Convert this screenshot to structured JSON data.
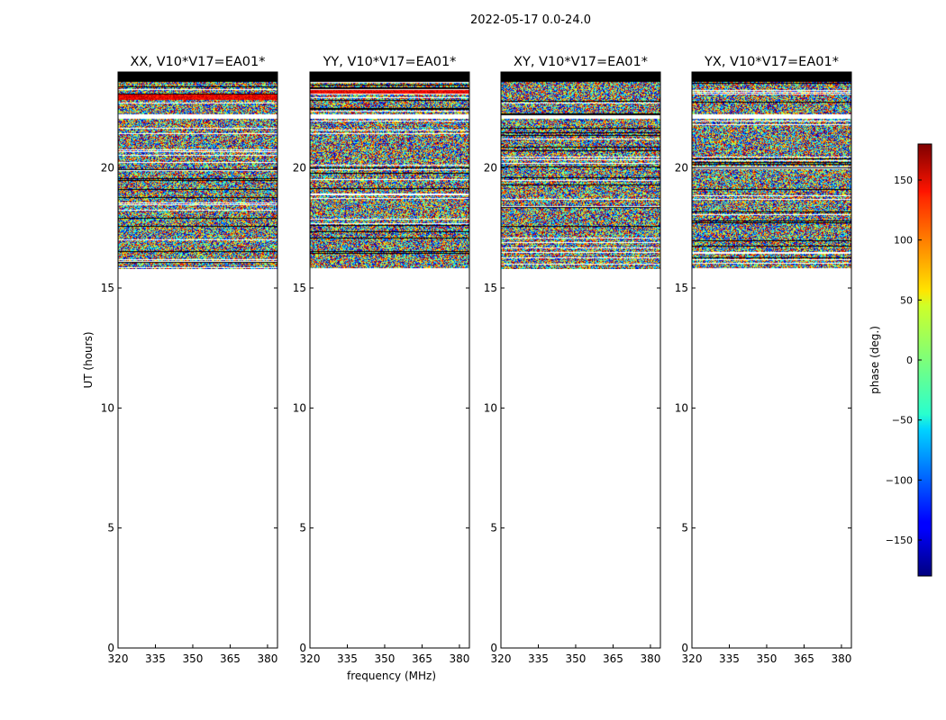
{
  "figure_title": "2022-05-17 0.0-24.0",
  "colorbar": {
    "label": "phase (deg.)",
    "range": [
      -180,
      180
    ],
    "ticks": [
      -150,
      -100,
      -50,
      0,
      50,
      100,
      150
    ],
    "tick_labels": [
      "−150",
      "−100",
      "−50",
      "0",
      "50",
      "100",
      "150"
    ],
    "colormap": "jet"
  },
  "chart_data": [
    {
      "type": "heatmap",
      "title": "XX, V10*V17=EA01*",
      "xlabel": "",
      "ylabel": "UT (hours)",
      "xlim": [
        320,
        384
      ],
      "ylim": [
        0,
        24
      ],
      "xticks": [
        320,
        335,
        350,
        365,
        380
      ],
      "yticks": [
        0,
        5,
        10,
        15,
        20
      ],
      "data_range_ut": [
        15.8,
        24.0
      ],
      "value": "phase (deg.)",
      "bright_band_ut": 23.0
    },
    {
      "type": "heatmap",
      "title": "YY, V10*V17=EA01*",
      "xlabel": "frequency (MHz)",
      "ylabel": "",
      "xlim": [
        320,
        384
      ],
      "ylim": [
        0,
        24
      ],
      "xticks": [
        320,
        335,
        350,
        365,
        380
      ],
      "yticks": [
        0,
        5,
        10,
        15,
        20
      ],
      "data_range_ut": [
        15.8,
        24.0
      ],
      "value": "phase (deg.)",
      "bright_band_ut": 23.2
    },
    {
      "type": "heatmap",
      "title": "XY, V10*V17=EA01*",
      "xlabel": "",
      "ylabel": "",
      "xlim": [
        320,
        384
      ],
      "ylim": [
        0,
        24
      ],
      "xticks": [
        320,
        335,
        350,
        365,
        380
      ],
      "yticks": [
        0,
        5,
        10,
        15,
        20
      ],
      "data_range_ut": [
        15.8,
        24.0
      ],
      "value": "phase (deg.)"
    },
    {
      "type": "heatmap",
      "title": "YX, V10*V17=EA01*",
      "xlabel": "",
      "ylabel": "",
      "xlim": [
        320,
        384
      ],
      "ylim": [
        0,
        24
      ],
      "xticks": [
        320,
        335,
        350,
        365,
        380
      ],
      "yticks": [
        0,
        5,
        10,
        15,
        20
      ],
      "data_range_ut": [
        15.8,
        24.0
      ],
      "value": "phase (deg.)"
    }
  ]
}
